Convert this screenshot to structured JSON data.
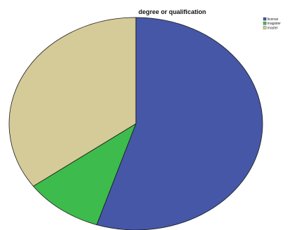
{
  "chart_data": {
    "type": "pie",
    "title": "degree or qualification",
    "slices": [
      {
        "label": "license",
        "value": 55,
        "color": "#4557a6"
      },
      {
        "label": "magister",
        "value": 10,
        "color": "#3dbb4c"
      },
      {
        "label": "master",
        "value": 35,
        "color": "#d4cb98"
      }
    ],
    "start_angle_deg": 0,
    "direction": "clockwise",
    "legend_position": "top-right"
  }
}
